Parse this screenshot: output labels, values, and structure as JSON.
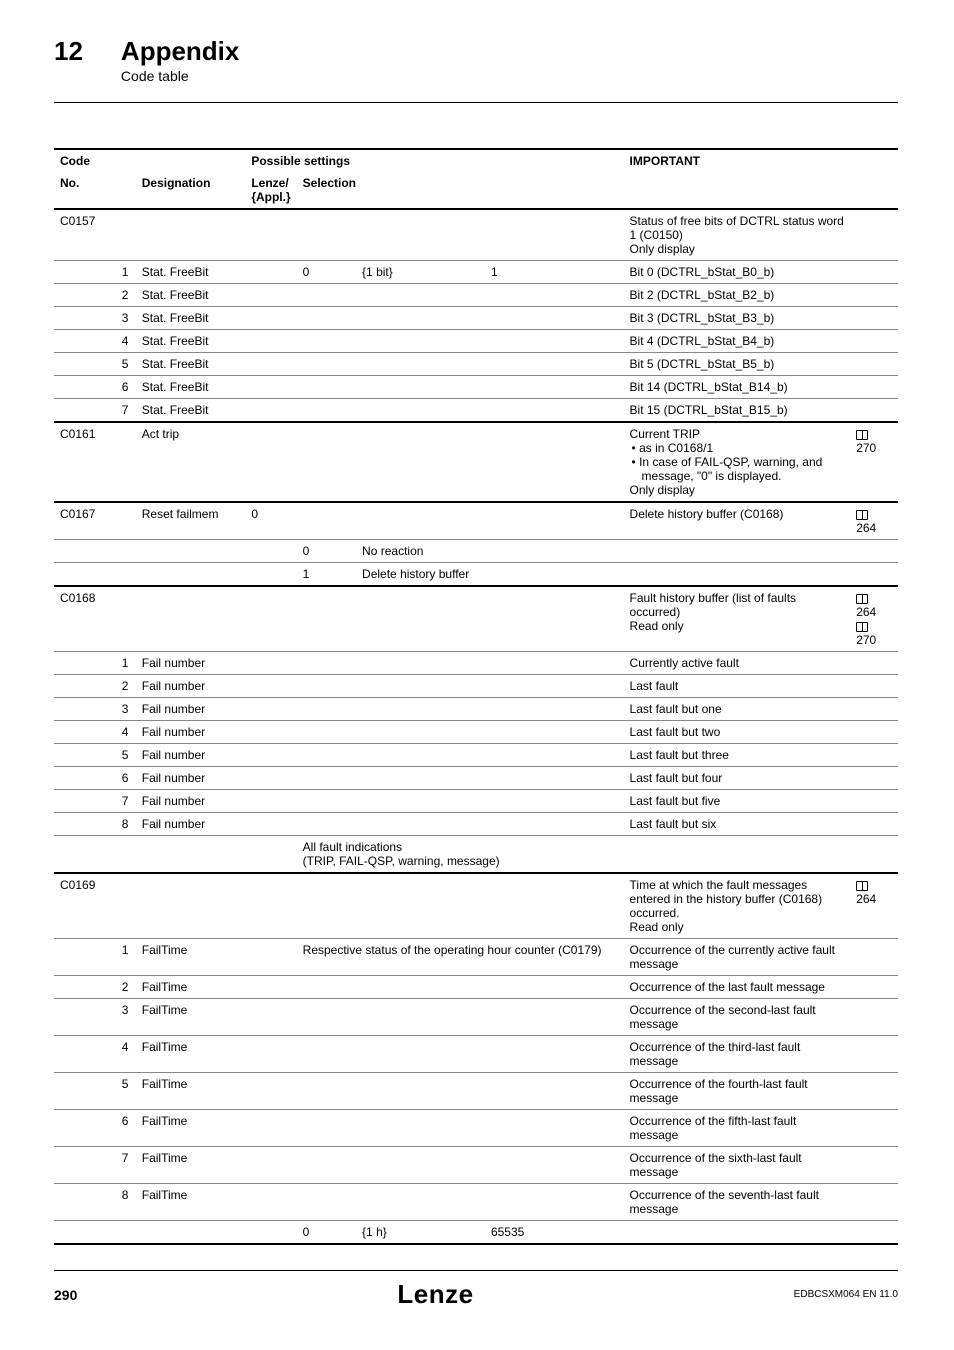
{
  "header": {
    "chapter_number": "12",
    "chapter_title": "Appendix",
    "chapter_subtitle": "Code table"
  },
  "table": {
    "columns": {
      "code": "Code",
      "possible_settings": "Possible settings",
      "important": "IMPORTANT",
      "no": "No.",
      "designation": "Designation",
      "lenze": "Lenze/\n{Appl.}",
      "selection": "Selection"
    },
    "rows": [
      {
        "no": "C0157",
        "sub": "",
        "desig": "",
        "lenze": "",
        "sel1": "",
        "sel2": "",
        "sel3": "",
        "imp": "Status of free bits of DCTRL status word 1 (C0150)\nOnly display",
        "ref": "",
        "sep": "thick"
      },
      {
        "no": "",
        "sub": "1",
        "desig": "Stat. FreeBit",
        "lenze": "",
        "sel1": "0",
        "sel2": "{1 bit}",
        "sel3": "1",
        "imp": "Bit 0 (DCTRL_bStat_B0_b)",
        "ref": "",
        "sep": "thin"
      },
      {
        "no": "",
        "sub": "2",
        "desig": "Stat. FreeBit",
        "lenze": "",
        "sel1": "",
        "sel2": "",
        "sel3": "",
        "imp": "Bit 2 (DCTRL_bStat_B2_b)",
        "ref": "",
        "sep": "thin"
      },
      {
        "no": "",
        "sub": "3",
        "desig": "Stat. FreeBit",
        "lenze": "",
        "sel1": "",
        "sel2": "",
        "sel3": "",
        "imp": "Bit 3 (DCTRL_bStat_B3_b)",
        "ref": "",
        "sep": "thin"
      },
      {
        "no": "",
        "sub": "4",
        "desig": "Stat. FreeBit",
        "lenze": "",
        "sel1": "",
        "sel2": "",
        "sel3": "",
        "imp": "Bit 4 (DCTRL_bStat_B4_b)",
        "ref": "",
        "sep": "thin"
      },
      {
        "no": "",
        "sub": "5",
        "desig": "Stat. FreeBit",
        "lenze": "",
        "sel1": "",
        "sel2": "",
        "sel3": "",
        "imp": "Bit 5 (DCTRL_bStat_B5_b)",
        "ref": "",
        "sep": "thin"
      },
      {
        "no": "",
        "sub": "6",
        "desig": "Stat. FreeBit",
        "lenze": "",
        "sel1": "",
        "sel2": "",
        "sel3": "",
        "imp": "Bit 14 (DCTRL_bStat_B14_b)",
        "ref": "",
        "sep": "thin"
      },
      {
        "no": "",
        "sub": "7",
        "desig": "Stat. FreeBit",
        "lenze": "",
        "sel1": "",
        "sel2": "",
        "sel3": "",
        "imp": "Bit 15 (DCTRL_bStat_B15_b)",
        "ref": "",
        "sep": "thin"
      },
      {
        "no": "C0161",
        "sub": "",
        "desig": "Act trip",
        "lenze": "",
        "sel1": "",
        "sel2": "",
        "sel3": "",
        "imp": "Current TRIP\n● as in C0168/1\n● In case of FAIL-QSP, warning, and message, \"0\" is displayed.\nOnly display",
        "ref": "270",
        "sep": "thick"
      },
      {
        "no": "C0167",
        "sub": "",
        "desig": "Reset failmem",
        "lenze": "0",
        "sel1": "",
        "sel2": "",
        "sel3": "",
        "imp": "Delete history buffer (C0168)",
        "ref": "264",
        "sep": "thick"
      },
      {
        "no": "",
        "sub": "",
        "desig": "",
        "lenze": "",
        "sel1": "0",
        "sel2": "No reaction",
        "sel3": "",
        "imp": "",
        "ref": "",
        "sep": "thin"
      },
      {
        "no": "",
        "sub": "",
        "desig": "",
        "lenze": "",
        "sel1": "1",
        "sel2": "Delete history buffer",
        "sel3": "",
        "imp": "",
        "ref": "",
        "sep": "thin"
      },
      {
        "no": "C0168",
        "sub": "",
        "desig": "",
        "lenze": "",
        "sel1": "",
        "sel2": "",
        "sel3": "",
        "imp": "Fault history buffer (list of faults occurred)\nRead only",
        "ref": "264\n270",
        "sep": "thick"
      },
      {
        "no": "",
        "sub": "1",
        "desig": "Fail number",
        "lenze": "",
        "sel1": "",
        "sel2": "",
        "sel3": "",
        "imp": "Currently active fault",
        "ref": "",
        "sep": "thin"
      },
      {
        "no": "",
        "sub": "2",
        "desig": "Fail number",
        "lenze": "",
        "sel1": "",
        "sel2": "",
        "sel3": "",
        "imp": "Last fault",
        "ref": "",
        "sep": "thin"
      },
      {
        "no": "",
        "sub": "3",
        "desig": "Fail number",
        "lenze": "",
        "sel1": "",
        "sel2": "",
        "sel3": "",
        "imp": "Last fault but one",
        "ref": "",
        "sep": "thin"
      },
      {
        "no": "",
        "sub": "4",
        "desig": "Fail number",
        "lenze": "",
        "sel1": "",
        "sel2": "",
        "sel3": "",
        "imp": "Last fault but two",
        "ref": "",
        "sep": "thin"
      },
      {
        "no": "",
        "sub": "5",
        "desig": "Fail number",
        "lenze": "",
        "sel1": "",
        "sel2": "",
        "sel3": "",
        "imp": "Last fault but three",
        "ref": "",
        "sep": "thin"
      },
      {
        "no": "",
        "sub": "6",
        "desig": "Fail number",
        "lenze": "",
        "sel1": "",
        "sel2": "",
        "sel3": "",
        "imp": "Last fault but four",
        "ref": "",
        "sep": "thin"
      },
      {
        "no": "",
        "sub": "7",
        "desig": "Fail number",
        "lenze": "",
        "sel1": "",
        "sel2": "",
        "sel3": "",
        "imp": "Last fault but five",
        "ref": "",
        "sep": "thin"
      },
      {
        "no": "",
        "sub": "8",
        "desig": "Fail number",
        "lenze": "",
        "sel1": "",
        "sel2": "",
        "sel3": "",
        "imp": "Last fault but six",
        "ref": "",
        "sep": "thin"
      },
      {
        "no": "",
        "sub": "",
        "desig": "",
        "lenze": "",
        "sel_full": "All fault indications\n(TRIP, FAIL-QSP, warning, message)",
        "imp": "",
        "ref": "",
        "sep": "thin"
      },
      {
        "no": "C0169",
        "sub": "",
        "desig": "",
        "lenze": "",
        "sel1": "",
        "sel2": "",
        "sel3": "",
        "imp": "Time at which the fault messages entered in the history buffer (C0168) occurred.\nRead only",
        "ref": "264",
        "sep": "thick"
      },
      {
        "no": "",
        "sub": "1",
        "desig": "FailTime",
        "lenze": "",
        "sel_full": "Respective status of the operating hour counter (C0179)",
        "imp": "Occurrence of the currently active fault message",
        "ref": "",
        "sep": "thin"
      },
      {
        "no": "",
        "sub": "2",
        "desig": "FailTime",
        "lenze": "",
        "sel1": "",
        "sel2": "",
        "sel3": "",
        "imp": "Occurrence of the last fault message",
        "ref": "",
        "sep": "thin"
      },
      {
        "no": "",
        "sub": "3",
        "desig": "FailTime",
        "lenze": "",
        "sel1": "",
        "sel2": "",
        "sel3": "",
        "imp": "Occurrence of the second-last fault message",
        "ref": "",
        "sep": "thin"
      },
      {
        "no": "",
        "sub": "4",
        "desig": "FailTime",
        "lenze": "",
        "sel1": "",
        "sel2": "",
        "sel3": "",
        "imp": "Occurrence of the third-last fault message",
        "ref": "",
        "sep": "thin"
      },
      {
        "no": "",
        "sub": "5",
        "desig": "FailTime",
        "lenze": "",
        "sel1": "",
        "sel2": "",
        "sel3": "",
        "imp": "Occurrence of the fourth-last fault message",
        "ref": "",
        "sep": "thin"
      },
      {
        "no": "",
        "sub": "6",
        "desig": "FailTime",
        "lenze": "",
        "sel1": "",
        "sel2": "",
        "sel3": "",
        "imp": "Occurrence of the fifth-last fault message",
        "ref": "",
        "sep": "thin"
      },
      {
        "no": "",
        "sub": "7",
        "desig": "FailTime",
        "lenze": "",
        "sel1": "",
        "sel2": "",
        "sel3": "",
        "imp": "Occurrence of the sixth-last fault message",
        "ref": "",
        "sep": "thin"
      },
      {
        "no": "",
        "sub": "8",
        "desig": "FailTime",
        "lenze": "",
        "sel1": "",
        "sel2": "",
        "sel3": "",
        "imp": "Occurrence of the seventh-last fault message",
        "ref": "",
        "sep": "thin"
      },
      {
        "no": "",
        "sub": "",
        "desig": "",
        "lenze": "",
        "sel1": "0",
        "sel2": "{1 h}",
        "sel3": "65535",
        "imp": "",
        "ref": "",
        "sep": "thin",
        "bottom": "thick"
      }
    ]
  },
  "footer": {
    "page_number": "290",
    "logo": "Lenze",
    "doc_id": "EDBCSXM064 EN 11.0"
  }
}
